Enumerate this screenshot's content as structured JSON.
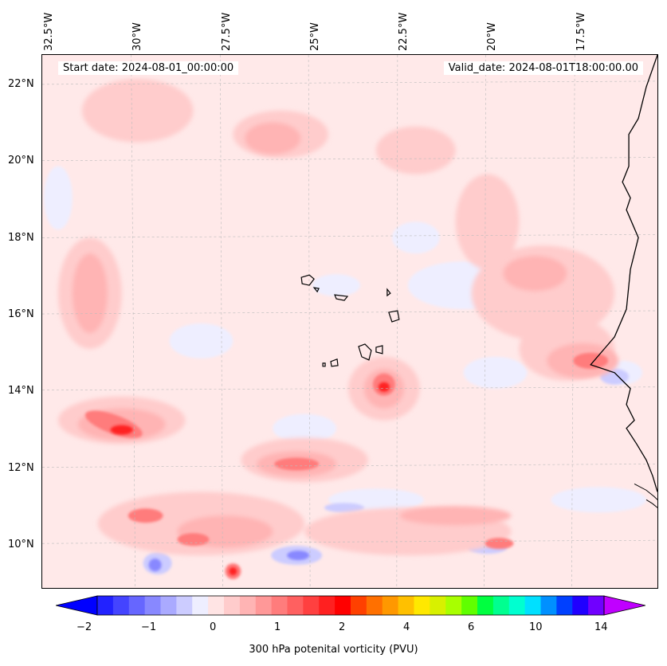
{
  "map": {
    "lon_labels": [
      "32.5°W",
      "30°W",
      "27.5°W",
      "25°W",
      "22.5°W",
      "20°W",
      "17.5°W"
    ],
    "lat_labels": [
      "22°N",
      "20°N",
      "18°N",
      "16°N",
      "14°N",
      "12°N",
      "10°N"
    ],
    "start_date": "Start date: 2024-08-01_00:00:00",
    "valid_date": "Valid_date: 2024-08-01T18:00:00.00",
    "background_color": "#ffe9e9"
  },
  "colorbar": {
    "ticks": [
      "−2",
      "−1",
      "0",
      "1",
      "2",
      "4",
      "6",
      "10",
      "14"
    ],
    "label": "300 hPa potenital vorticity (PVU)",
    "colors": [
      "#0000ff",
      "#2222ff",
      "#4444ff",
      "#6666ff",
      "#8888ff",
      "#aaaaff",
      "#ccccff",
      "#eeeeff",
      "#ffe4e4",
      "#ffcccc",
      "#ffb4b4",
      "#ff9898",
      "#ff7c7c",
      "#ff6060",
      "#ff4040",
      "#ff2020",
      "#ff0000",
      "#ff4000",
      "#ff7000",
      "#ff9800",
      "#ffc000",
      "#ffe800",
      "#d8f000",
      "#a8ff00",
      "#60ff00",
      "#00ff40",
      "#00ff90",
      "#00ffd0",
      "#00e0ff",
      "#0090ff",
      "#0040ff",
      "#2000ff",
      "#7000ff",
      "#c000ff"
    ]
  }
}
